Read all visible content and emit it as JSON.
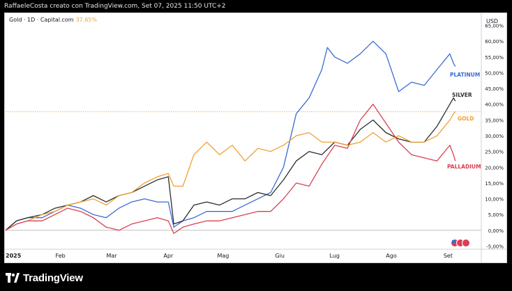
{
  "header": {
    "author_line": "RaffaeleCosta creato con TradingView.com, Set 07, 2025 11:50 UTC+2"
  },
  "legend": {
    "symbol_label": "Gold · 1D · Capital.com",
    "change_pct": "37,65%"
  },
  "footer": {
    "brand": "TradingView",
    "logo_icon": "tradingview-logo-icon"
  },
  "chart_data": {
    "type": "line",
    "currency_label": "USD",
    "y_unit": "%",
    "ylim": [
      -6,
      66
    ],
    "y_ticks": [
      "65,00%",
      "60,00%",
      "55,00%",
      "50,00%",
      "45,00%",
      "40,00%",
      "35,00%",
      "30,00%",
      "25,00%",
      "20,00%",
      "15,00%",
      "10,00%",
      "5,00%",
      "0,00%",
      "-5,00%"
    ],
    "y_tick_values": [
      65,
      60,
      55,
      50,
      45,
      40,
      35,
      30,
      25,
      20,
      15,
      10,
      5,
      0,
      -5
    ],
    "x_start": "2025-01-02",
    "x_end": "2025-09-07",
    "x_ticks": [
      {
        "date": "2025-01-02",
        "label": "2025"
      },
      {
        "date": "2025-02-01",
        "label": "Feb"
      },
      {
        "date": "2025-03-01",
        "label": "Mar"
      },
      {
        "date": "2025-04-01",
        "label": "Apr"
      },
      {
        "date": "2025-05-01",
        "label": "Mag"
      },
      {
        "date": "2025-06-01",
        "label": "Giu"
      },
      {
        "date": "2025-07-01",
        "label": "Lug"
      },
      {
        "date": "2025-08-01",
        "label": "Ago"
      },
      {
        "date": "2025-09-01",
        "label": "Set"
      }
    ],
    "current_value_line": 37.65,
    "current_value_color": "#f0a030",
    "zero_line": 0,
    "series": [
      {
        "name": "PLATINUM",
        "color": "#3a6bd4",
        "points": [
          [
            "2025-01-02",
            0
          ],
          [
            "2025-01-08",
            3
          ],
          [
            "2025-01-14",
            4
          ],
          [
            "2025-01-22",
            4
          ],
          [
            "2025-01-29",
            6
          ],
          [
            "2025-02-05",
            8
          ],
          [
            "2025-02-12",
            7
          ],
          [
            "2025-02-19",
            5
          ],
          [
            "2025-02-26",
            4
          ],
          [
            "2025-03-05",
            7
          ],
          [
            "2025-03-12",
            9
          ],
          [
            "2025-03-19",
            10
          ],
          [
            "2025-03-26",
            9
          ],
          [
            "2025-04-01",
            9
          ],
          [
            "2025-04-04",
            1
          ],
          [
            "2025-04-09",
            3
          ],
          [
            "2025-04-15",
            4
          ],
          [
            "2025-04-22",
            6
          ],
          [
            "2025-04-29",
            6
          ],
          [
            "2025-05-06",
            6
          ],
          [
            "2025-05-13",
            8
          ],
          [
            "2025-05-20",
            10
          ],
          [
            "2025-05-27",
            12
          ],
          [
            "2025-06-03",
            20
          ],
          [
            "2025-06-10",
            37
          ],
          [
            "2025-06-17",
            42
          ],
          [
            "2025-06-24",
            51
          ],
          [
            "2025-06-27",
            58
          ],
          [
            "2025-07-01",
            55
          ],
          [
            "2025-07-08",
            53
          ],
          [
            "2025-07-15",
            56
          ],
          [
            "2025-07-22",
            60
          ],
          [
            "2025-07-29",
            56
          ],
          [
            "2025-08-05",
            44
          ],
          [
            "2025-08-12",
            47
          ],
          [
            "2025-08-19",
            46
          ],
          [
            "2025-08-26",
            51
          ],
          [
            "2025-09-02",
            56
          ],
          [
            "2025-09-04",
            53
          ],
          [
            "2025-09-05",
            52
          ]
        ]
      },
      {
        "name": "SILVER",
        "color": "#2b2b2b",
        "points": [
          [
            "2025-01-02",
            0
          ],
          [
            "2025-01-08",
            3
          ],
          [
            "2025-01-14",
            4
          ],
          [
            "2025-01-22",
            5
          ],
          [
            "2025-01-29",
            7
          ],
          [
            "2025-02-05",
            8
          ],
          [
            "2025-02-12",
            9
          ],
          [
            "2025-02-19",
            11
          ],
          [
            "2025-02-26",
            9
          ],
          [
            "2025-03-05",
            11
          ],
          [
            "2025-03-12",
            12
          ],
          [
            "2025-03-19",
            14
          ],
          [
            "2025-03-26",
            16
          ],
          [
            "2025-04-01",
            17
          ],
          [
            "2025-04-04",
            2
          ],
          [
            "2025-04-09",
            3
          ],
          [
            "2025-04-15",
            8
          ],
          [
            "2025-04-22",
            9
          ],
          [
            "2025-04-29",
            8
          ],
          [
            "2025-05-06",
            10
          ],
          [
            "2025-05-13",
            10
          ],
          [
            "2025-05-20",
            12
          ],
          [
            "2025-05-27",
            11
          ],
          [
            "2025-06-03",
            16
          ],
          [
            "2025-06-10",
            22
          ],
          [
            "2025-06-17",
            25
          ],
          [
            "2025-06-24",
            24
          ],
          [
            "2025-07-01",
            28
          ],
          [
            "2025-07-08",
            27
          ],
          [
            "2025-07-15",
            32
          ],
          [
            "2025-07-22",
            35
          ],
          [
            "2025-07-29",
            31
          ],
          [
            "2025-08-05",
            29
          ],
          [
            "2025-08-12",
            28
          ],
          [
            "2025-08-19",
            28
          ],
          [
            "2025-08-26",
            33
          ],
          [
            "2025-09-02",
            40
          ],
          [
            "2025-09-04",
            42
          ],
          [
            "2025-09-05",
            41
          ]
        ]
      },
      {
        "name": "GOLD",
        "color": "#f0a030",
        "points": [
          [
            "2025-01-02",
            0
          ],
          [
            "2025-01-08",
            2
          ],
          [
            "2025-01-14",
            3
          ],
          [
            "2025-01-22",
            5
          ],
          [
            "2025-01-29",
            6
          ],
          [
            "2025-02-05",
            8
          ],
          [
            "2025-02-12",
            9
          ],
          [
            "2025-02-19",
            10
          ],
          [
            "2025-02-26",
            8
          ],
          [
            "2025-03-05",
            11
          ],
          [
            "2025-03-12",
            12
          ],
          [
            "2025-03-19",
            15
          ],
          [
            "2025-03-26",
            17
          ],
          [
            "2025-04-01",
            18
          ],
          [
            "2025-04-04",
            14
          ],
          [
            "2025-04-09",
            14
          ],
          [
            "2025-04-15",
            24
          ],
          [
            "2025-04-22",
            28
          ],
          [
            "2025-04-29",
            24
          ],
          [
            "2025-05-06",
            27
          ],
          [
            "2025-05-13",
            22
          ],
          [
            "2025-05-20",
            26
          ],
          [
            "2025-05-27",
            25
          ],
          [
            "2025-06-03",
            27
          ],
          [
            "2025-06-10",
            30
          ],
          [
            "2025-06-17",
            31
          ],
          [
            "2025-06-24",
            28
          ],
          [
            "2025-07-01",
            28
          ],
          [
            "2025-07-08",
            27
          ],
          [
            "2025-07-15",
            28
          ],
          [
            "2025-07-22",
            31
          ],
          [
            "2025-07-29",
            28
          ],
          [
            "2025-08-05",
            30
          ],
          [
            "2025-08-12",
            28
          ],
          [
            "2025-08-19",
            28
          ],
          [
            "2025-08-26",
            30
          ],
          [
            "2025-09-02",
            35
          ],
          [
            "2025-09-04",
            37
          ],
          [
            "2025-09-05",
            37.65
          ]
        ]
      },
      {
        "name": "PALLADIUM",
        "color": "#d94050",
        "points": [
          [
            "2025-01-02",
            0
          ],
          [
            "2025-01-08",
            2
          ],
          [
            "2025-01-14",
            3
          ],
          [
            "2025-01-22",
            3
          ],
          [
            "2025-01-29",
            5
          ],
          [
            "2025-02-05",
            7
          ],
          [
            "2025-02-12",
            6
          ],
          [
            "2025-02-19",
            4
          ],
          [
            "2025-02-26",
            1
          ],
          [
            "2025-03-05",
            0
          ],
          [
            "2025-03-12",
            2
          ],
          [
            "2025-03-19",
            3
          ],
          [
            "2025-03-26",
            4
          ],
          [
            "2025-04-01",
            3
          ],
          [
            "2025-04-04",
            -1
          ],
          [
            "2025-04-09",
            1
          ],
          [
            "2025-04-15",
            2
          ],
          [
            "2025-04-22",
            3
          ],
          [
            "2025-04-29",
            3
          ],
          [
            "2025-05-06",
            4
          ],
          [
            "2025-05-13",
            5
          ],
          [
            "2025-05-20",
            6
          ],
          [
            "2025-05-27",
            6
          ],
          [
            "2025-06-03",
            10
          ],
          [
            "2025-06-10",
            15
          ],
          [
            "2025-06-17",
            14
          ],
          [
            "2025-06-24",
            21
          ],
          [
            "2025-07-01",
            27
          ],
          [
            "2025-07-08",
            26
          ],
          [
            "2025-07-15",
            35
          ],
          [
            "2025-07-22",
            40
          ],
          [
            "2025-07-29",
            34
          ],
          [
            "2025-08-05",
            28
          ],
          [
            "2025-08-12",
            24
          ],
          [
            "2025-08-19",
            23
          ],
          [
            "2025-08-26",
            22
          ],
          [
            "2025-09-02",
            27
          ],
          [
            "2025-09-04",
            24
          ],
          [
            "2025-09-05",
            22
          ]
        ]
      }
    ],
    "series_labels": [
      "PLATINUM",
      "SILVER",
      "GOLD",
      "PALLADIUM"
    ]
  }
}
